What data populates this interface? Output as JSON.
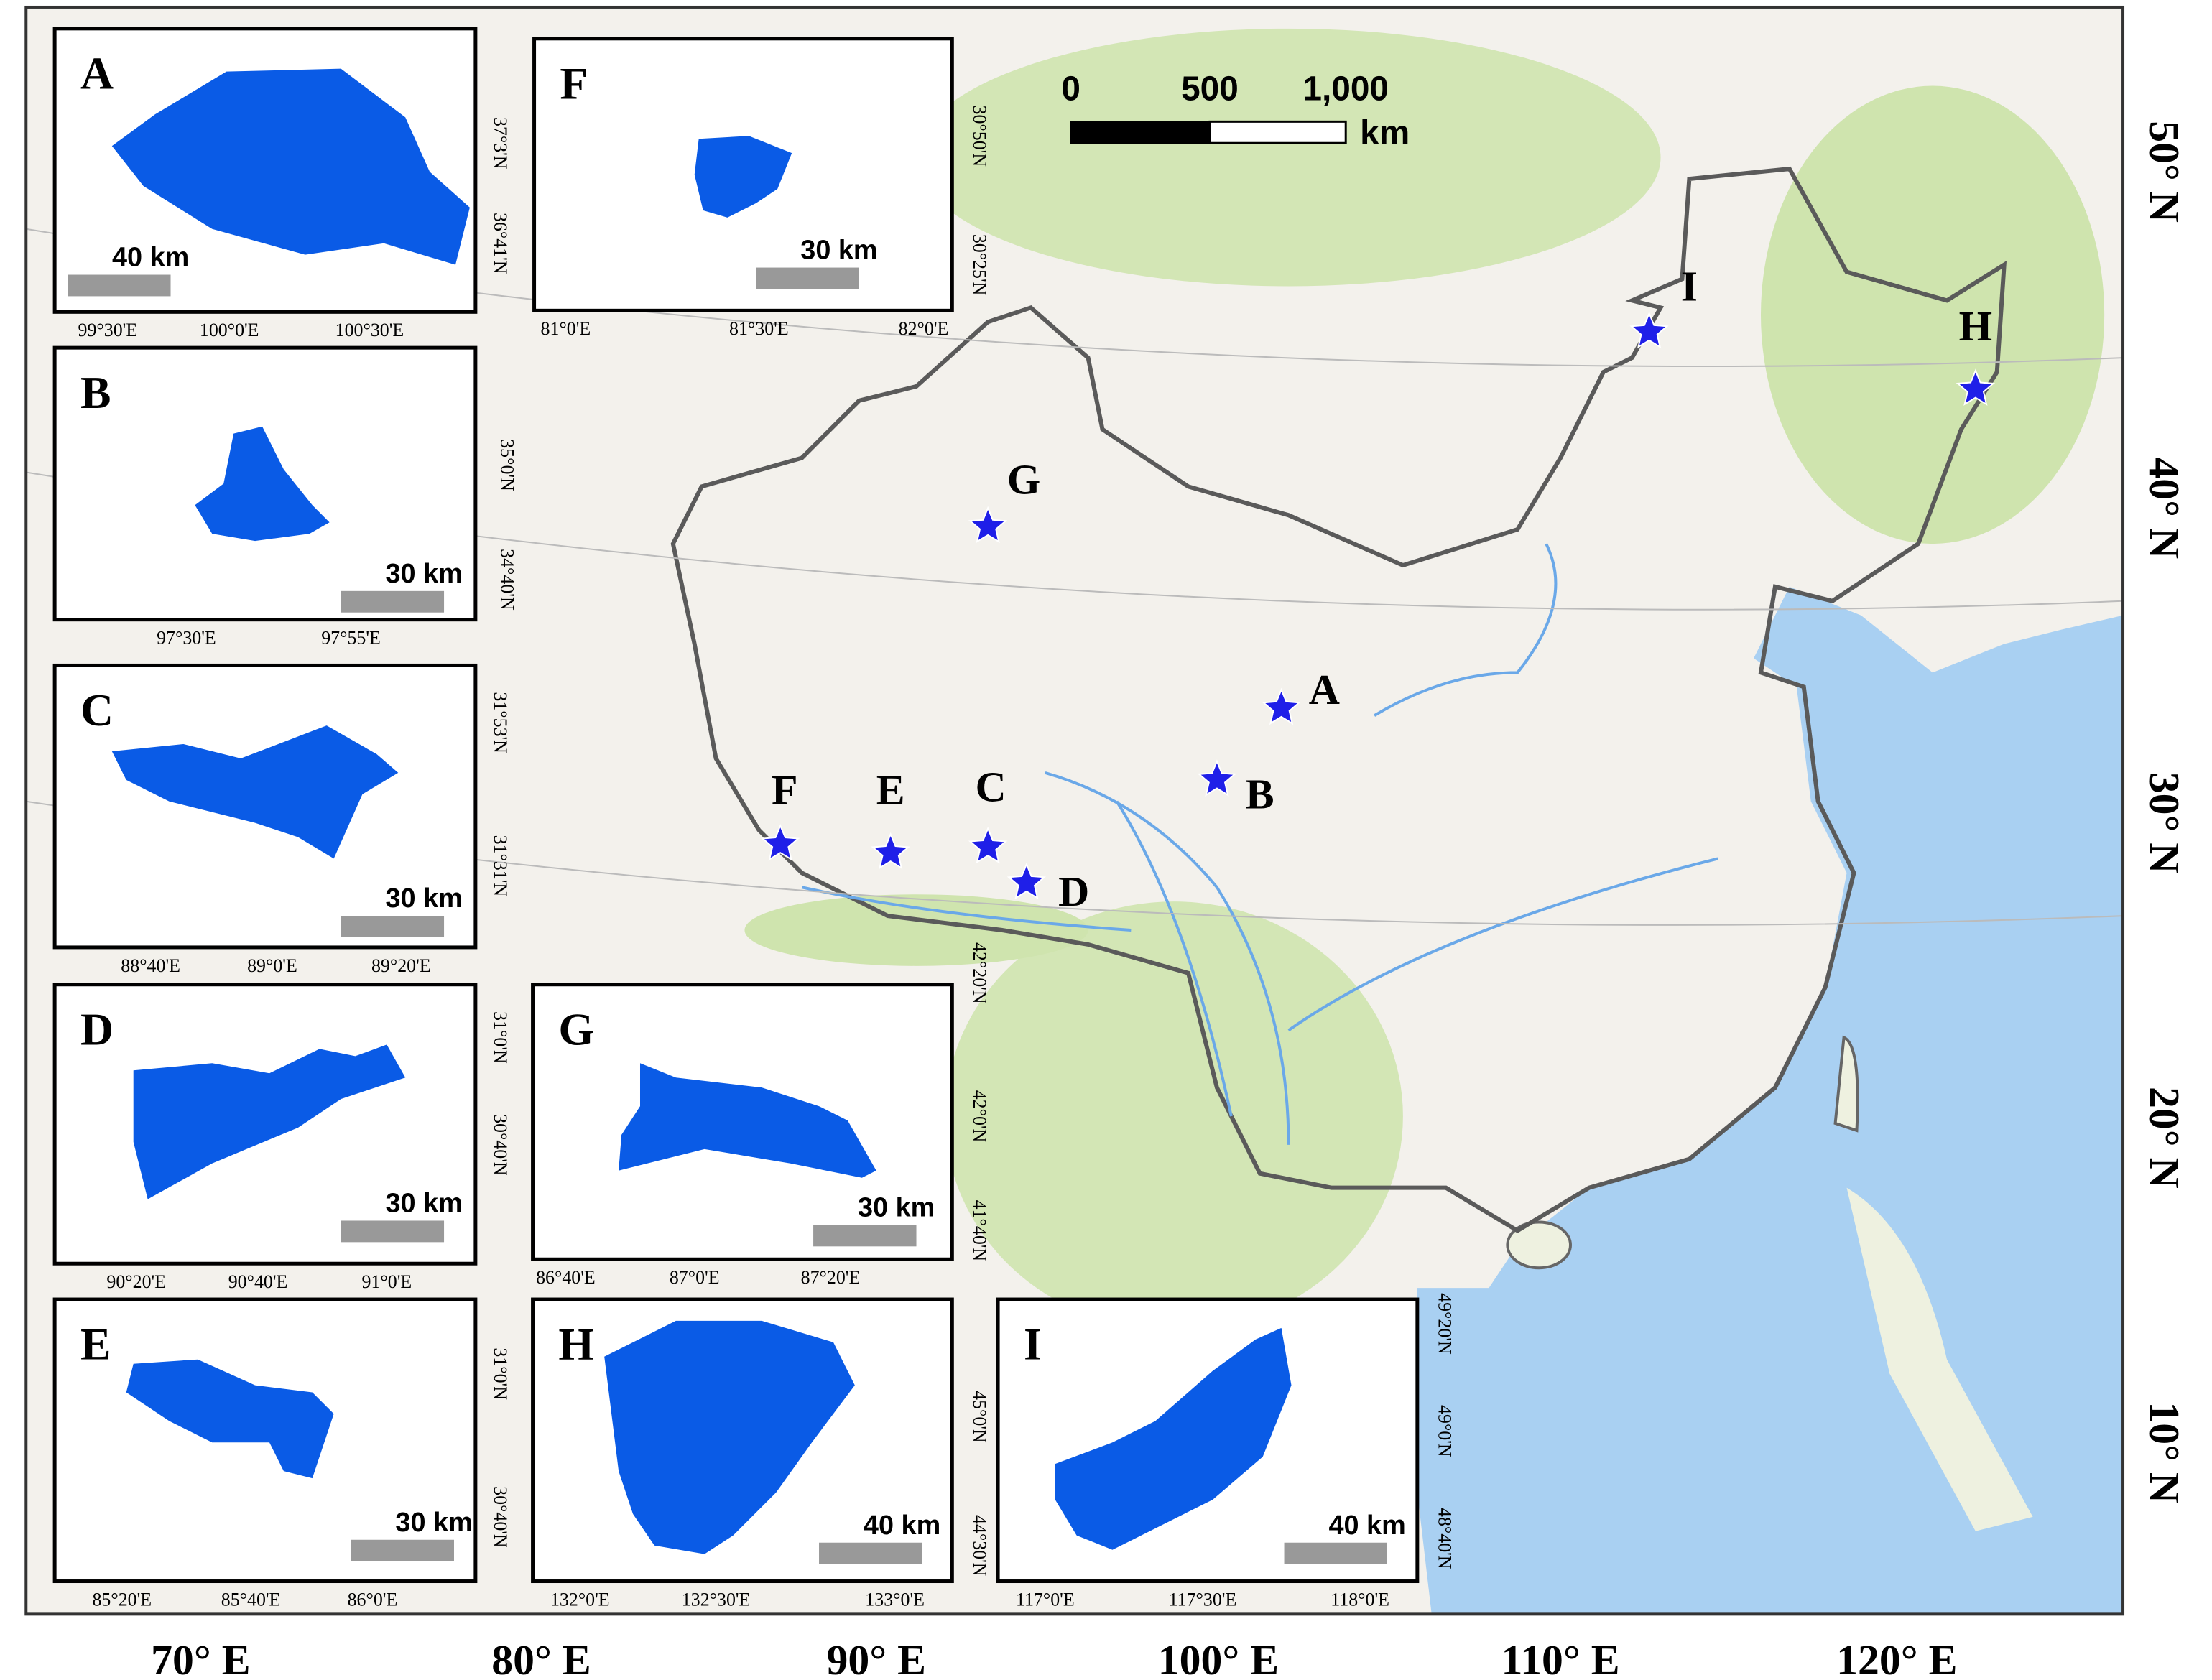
{
  "map": {
    "scale_bar": {
      "labels": [
        "0",
        "500",
        "1,000"
      ],
      "unit": "km"
    },
    "longitude_labels": [
      "70° E",
      "80° E",
      "90° E",
      "100° E",
      "110° E",
      "120° E"
    ],
    "latitude_labels": [
      "50° N",
      "40° N",
      "30° N",
      "20° N",
      "10° N"
    ],
    "sites": [
      "A",
      "B",
      "C",
      "D",
      "E",
      "F",
      "G",
      "H",
      "I"
    ]
  },
  "insets": [
    {
      "label": "A",
      "scale": "40 km",
      "lon_labels": [
        "99°30'E",
        "100°0'E",
        "100°30'E"
      ],
      "lat_labels": [
        "37°3'N",
        "36°41'N"
      ]
    },
    {
      "label": "B",
      "scale": "30 km",
      "lon_labels": [
        "97°30'E",
        "97°55'E"
      ],
      "lat_labels": [
        "35°0'N",
        "34°40'N"
      ]
    },
    {
      "label": "C",
      "scale": "30 km",
      "lon_labels": [
        "88°40'E",
        "89°0'E",
        "89°20'E"
      ],
      "lat_labels": [
        "31°53'N",
        "31°31'N"
      ]
    },
    {
      "label": "D",
      "scale": "30 km",
      "lon_labels": [
        "90°20'E",
        "90°40'E",
        "91°0'E"
      ],
      "lat_labels": [
        "31°0'N",
        "30°40'N"
      ]
    },
    {
      "label": "E",
      "scale": "30 km",
      "lon_labels": [
        "85°20'E",
        "85°40'E",
        "86°0'E"
      ],
      "lat_labels": [
        "31°0'N",
        "30°40'N"
      ]
    },
    {
      "label": "F",
      "scale": "30 km",
      "lon_labels": [
        "81°0'E",
        "81°30'E",
        "82°0'E"
      ],
      "lat_labels": [
        "30°50'N",
        "30°25'N"
      ]
    },
    {
      "label": "G",
      "scale": "30 km",
      "lon_labels": [
        "86°40'E",
        "87°0'E",
        "87°20'E"
      ],
      "lat_labels": [
        "42°20'N",
        "42°0'N",
        "41°40'N"
      ]
    },
    {
      "label": "H",
      "scale": "40 km",
      "lon_labels": [
        "132°0'E",
        "132°30'E",
        "133°0'E"
      ],
      "lat_labels": [
        "45°0'N",
        "44°30'N"
      ]
    },
    {
      "label": "I",
      "scale": "40 km",
      "lon_labels": [
        "117°0'E",
        "117°30'E",
        "118°0'E"
      ],
      "lat_labels": [
        "49°20'N",
        "49°0'N",
        "48°40'N"
      ]
    }
  ]
}
